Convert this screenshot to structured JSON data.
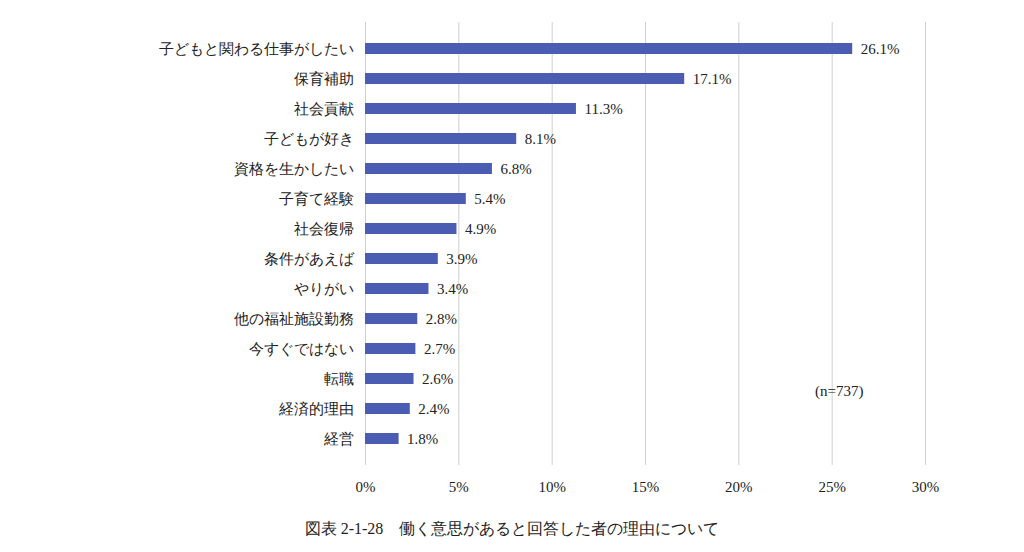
{
  "chart_data": {
    "type": "bar",
    "orientation": "horizontal",
    "title": "図表 2-1-28　働く意思があると回答した者の理由について",
    "annotation": "(n=737)",
    "categories": [
      "子どもと関わる仕事がしたい",
      "保育補助",
      "社会貢献",
      "子どもが好き",
      "資格を生かしたい",
      "子育て経験",
      "社会復帰",
      "条件があえば",
      "やりがい",
      "他の福祉施設勤務",
      "今すぐではない",
      "転職",
      "経済的理由",
      "経営"
    ],
    "values": [
      26.1,
      17.1,
      11.3,
      8.1,
      6.8,
      5.4,
      4.9,
      3.9,
      3.4,
      2.8,
      2.7,
      2.6,
      2.4,
      1.8
    ],
    "value_labels": [
      "26.1%",
      "17.1%",
      "11.3%",
      "8.1%",
      "6.8%",
      "5.4%",
      "4.9%",
      "3.9%",
      "3.4%",
      "2.8%",
      "2.7%",
      "2.6%",
      "2.4%",
      "1.8%"
    ],
    "data_labels": true,
    "color": "#4b5cb3",
    "xlim": [
      0,
      30
    ],
    "xticks": [
      {
        "value": 0,
        "label": "0%"
      },
      {
        "value": 5,
        "label": "5%"
      },
      {
        "value": 10,
        "label": "10%"
      },
      {
        "value": 15,
        "label": "15%"
      },
      {
        "value": 20,
        "label": "20%"
      },
      {
        "value": 25,
        "label": "25%"
      },
      {
        "value": 30,
        "label": "30%"
      }
    ],
    "grid": true
  }
}
